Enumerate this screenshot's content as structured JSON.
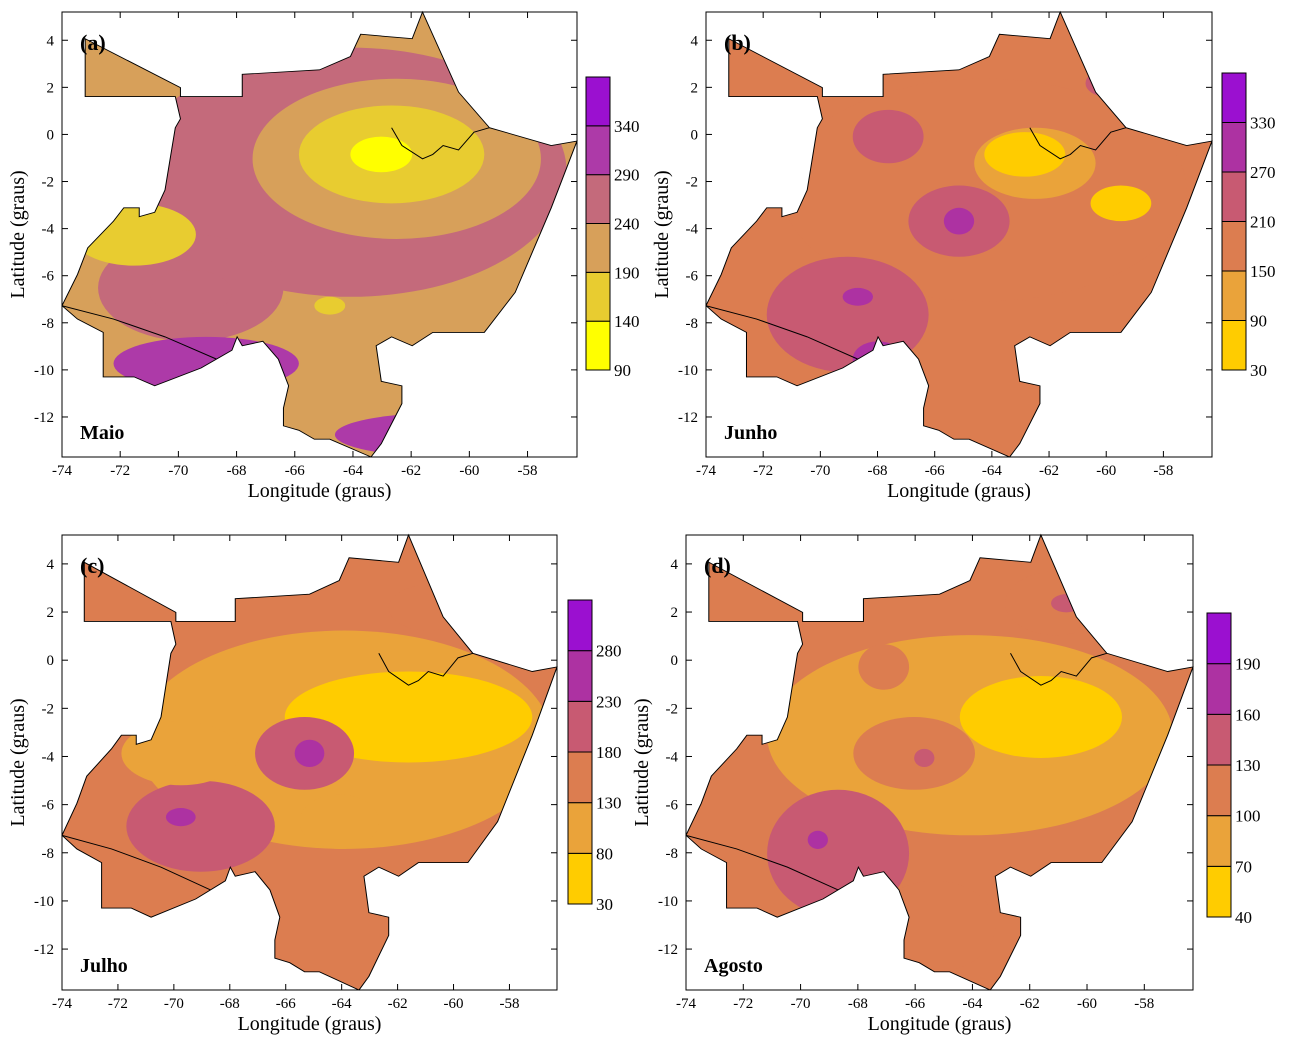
{
  "panels": [
    {
      "letter": "(a)",
      "month": "Maio",
      "colorbar": {
        "levels": [
          "90",
          "140",
          "190",
          "240",
          "290",
          "340"
        ],
        "colors": [
          "#ffff00",
          "#e8cc30",
          "#d7a05a",
          "#c46a7b",
          "#ad3aa8",
          "#9b10d0"
        ]
      }
    },
    {
      "letter": "(b)",
      "month": "Junho",
      "colorbar": {
        "levels": [
          "30",
          "90",
          "150",
          "210",
          "270",
          "330"
        ],
        "colors": [
          "#ffcc00",
          "#eaa33a",
          "#dc7d50",
          "#c85a72",
          "#ad32a2",
          "#9b10d0"
        ]
      }
    },
    {
      "letter": "(c)",
      "month": "Julho",
      "colorbar": {
        "levels": [
          "30",
          "80",
          "130",
          "180",
          "230",
          "280"
        ],
        "colors": [
          "#ffcc00",
          "#eaa33a",
          "#dc7d50",
          "#c85a72",
          "#ad32a2",
          "#9b10d0"
        ]
      }
    },
    {
      "letter": "(d)",
      "month": "Agosto",
      "colorbar": {
        "levels": [
          "40",
          "70",
          "100",
          "130",
          "160",
          "190"
        ],
        "colors": [
          "#ffcc00",
          "#eaa33a",
          "#dc7d50",
          "#c85a72",
          "#ad32a2",
          "#9b10d0"
        ]
      }
    }
  ],
  "axes": {
    "xlabel": "Longitude (graus)",
    "ylabel": "Latitude (graus)",
    "xticks": [
      "-74",
      "-72",
      "-70",
      "-68",
      "-66",
      "-64",
      "-62",
      "-60",
      "-58"
    ],
    "yticks": [
      "4",
      "2",
      "0",
      "-2",
      "-4",
      "-6",
      "-8",
      "-10",
      "-12"
    ],
    "xlim": [
      -74,
      -56.3
    ],
    "ylim": [
      -13.7,
      5.2
    ]
  }
}
